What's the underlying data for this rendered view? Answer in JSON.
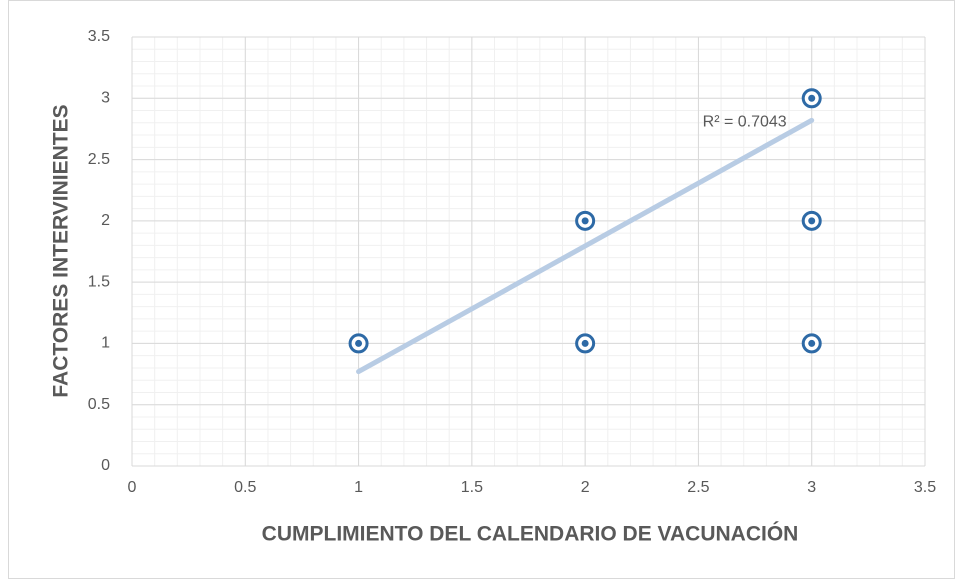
{
  "chart_data": {
    "type": "scatter",
    "x_label": "CUMPLIMIENTO DEL CALENDARIO DE VACUNACIÓN",
    "y_label": "FACTORES INTERVINIENTES",
    "series": [
      {
        "color": "#2e6aa6",
        "x": [
          1,
          2,
          2,
          3,
          3,
          3
        ],
        "values": [
          1,
          1,
          2,
          1,
          2,
          3
        ]
      }
    ],
    "trendline": {
      "x": [
        1,
        3
      ],
      "values": [
        0.77,
        2.82
      ],
      "color": "#b8cce4",
      "label": "R² = 0.7043"
    },
    "xlim": [
      0,
      3.5
    ],
    "xticks": [
      0,
      0.5,
      1,
      1.5,
      2,
      2.5,
      3,
      3.5
    ],
    "ylim": [
      0,
      3.5
    ],
    "yticks": [
      0,
      0.5,
      1,
      1.5,
      2,
      2.5,
      3,
      3.5
    ],
    "grid": true,
    "minor_grid": true,
    "minor_step": 0.1
  }
}
